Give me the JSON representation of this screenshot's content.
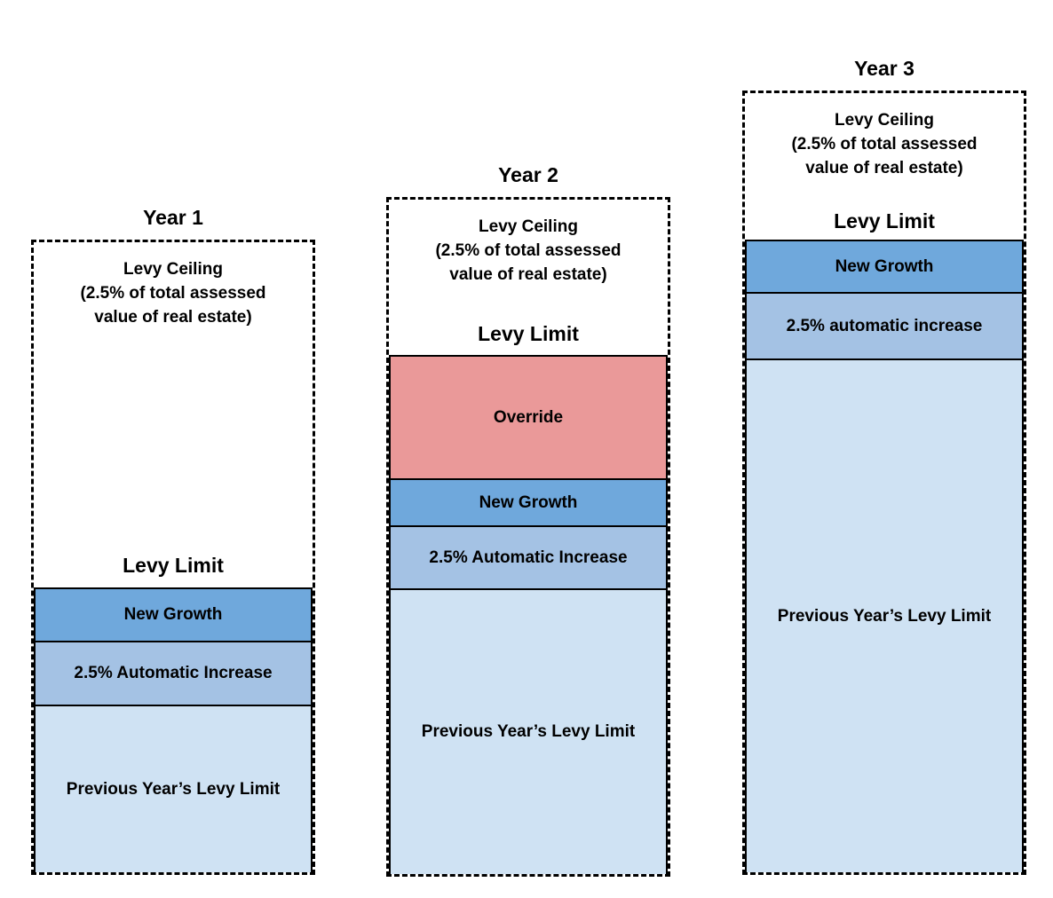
{
  "page": {
    "background": "#ffffff"
  },
  "figure": {
    "description": "Proposition 2.5 levy limit diagram across three years",
    "palette": {
      "border": "#000000",
      "override": "#ea9999",
      "new_growth": "#6fa8dc",
      "automatic_increase": "#a4c2e4",
      "previous_levy_limit": "#cfe2f3",
      "text": "#000000"
    },
    "columns": [
      {
        "id": "year-1",
        "title": "Year 1",
        "ceiling_lines": [
          "Levy Ceiling",
          "(2.5% of total assessed",
          "value of real estate)"
        ],
        "levy_limit_label": "Levy Limit",
        "segments": [
          {
            "name": "new-growth",
            "label": "New Growth",
            "color": "#6fa8dc"
          },
          {
            "name": "automatic-increase",
            "label": "2.5% Automatic Increase",
            "color": "#a4c2e4"
          },
          {
            "name": "previous-levy-limit",
            "label": "Previous Year’s Levy Limit",
            "color": "#cfe2f3"
          }
        ]
      },
      {
        "id": "year-2",
        "title": "Year 2",
        "ceiling_lines": [
          "Levy Ceiling",
          "(2.5% of total assessed",
          "value of real estate)"
        ],
        "levy_limit_label": "Levy Limit",
        "segments": [
          {
            "name": "override",
            "label": "Override",
            "color": "#ea9999"
          },
          {
            "name": "new-growth",
            "label": "New Growth",
            "color": "#6fa8dc"
          },
          {
            "name": "automatic-increase",
            "label": "2.5% Automatic Increase",
            "color": "#a4c2e4"
          },
          {
            "name": "previous-levy-limit",
            "label": "Previous Year’s Levy Limit",
            "color": "#cfe2f3"
          }
        ]
      },
      {
        "id": "year-3",
        "title": "Year 3",
        "ceiling_lines": [
          "Levy Ceiling",
          "(2.5% of total assessed",
          "value of real estate)"
        ],
        "levy_limit_label": "Levy Limit",
        "segments": [
          {
            "name": "new-growth",
            "label": "New Growth",
            "color": "#6fa8dc"
          },
          {
            "name": "automatic-increase",
            "label": "2.5% automatic increase",
            "color": "#a4c2e4"
          },
          {
            "name": "previous-levy-limit",
            "label": "Previous Year’s Levy Limit",
            "color": "#cfe2f3"
          }
        ]
      }
    ]
  }
}
